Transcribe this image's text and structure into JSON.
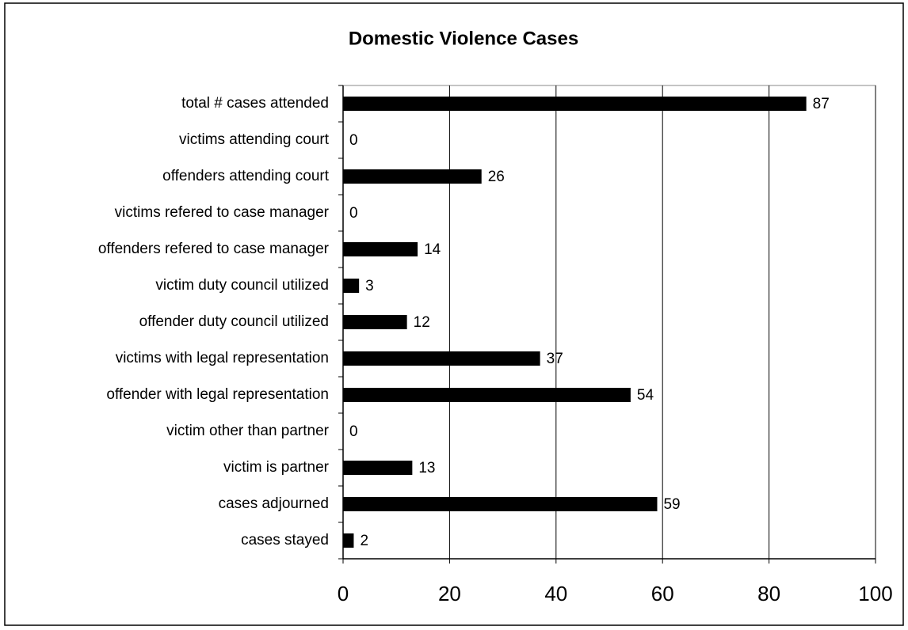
{
  "chart_data": {
    "type": "bar",
    "orientation": "horizontal",
    "title": "Domestic Violence Cases",
    "categories": [
      "total # cases attended",
      "victims attending court",
      "offenders attending court",
      "victims refered to case manager",
      "offenders refered to case manager",
      "victim duty council utilized",
      "offender duty council utilized",
      "victims with legal representation",
      "offender with legal representation",
      "victim other than partner",
      "victim is partner",
      "cases adjourned",
      "cases stayed"
    ],
    "values": [
      87,
      0,
      26,
      0,
      14,
      3,
      12,
      37,
      54,
      0,
      13,
      59,
      2
    ],
    "color": "#000000",
    "xlim": [
      0,
      100
    ],
    "xticks": [
      0,
      20,
      40,
      60,
      80,
      100
    ],
    "grid": true
  }
}
